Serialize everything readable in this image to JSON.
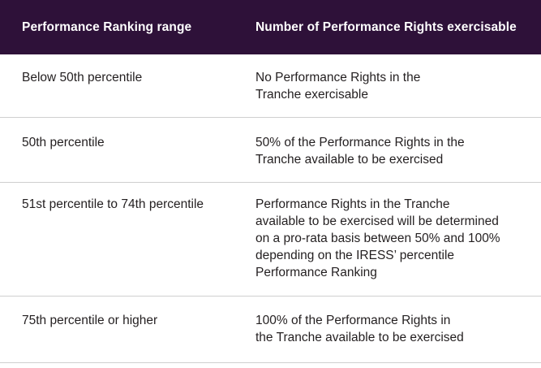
{
  "header": {
    "col1": "Performance Ranking range",
    "col2": "Number of Performance Rights exercisable"
  },
  "rows": [
    {
      "range": "Below 50th percentile",
      "rights": [
        "No Performance Rights in the",
        "Tranche exercisable"
      ]
    },
    {
      "range": "50th percentile",
      "rights": [
        "50% of the Performance Rights in the",
        "Tranche available to be exercised"
      ]
    },
    {
      "range": "51st percentile to 74th percentile",
      "rights": [
        "Performance Rights in the Tranche",
        "available to be exercised will be determined",
        "on a pro-rata basis between 50% and 100%",
        "depending on the IRESS’ percentile",
        "Performance Ranking"
      ]
    },
    {
      "range": "75th percentile or higher",
      "rights": [
        "100% of the Performance Rights in",
        "the Tranche available to be exercised"
      ]
    }
  ],
  "colors": {
    "header_bg": "#2e1139",
    "header_text": "#ffffff",
    "body_text": "#231f20",
    "divider": "#cfcfcf"
  }
}
